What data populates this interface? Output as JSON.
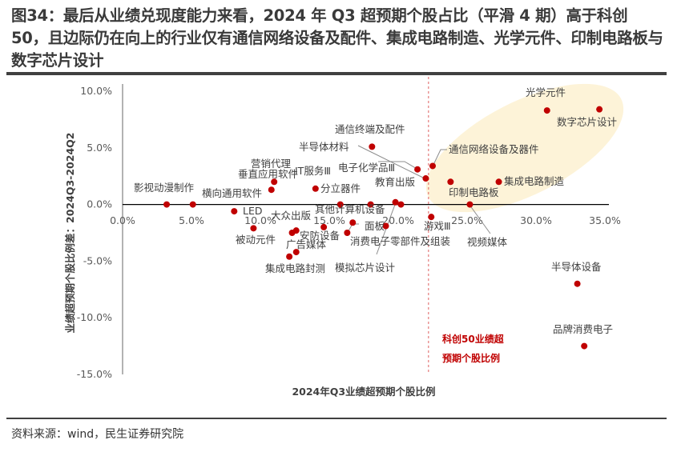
{
  "title": "图34：最后从业绩兑现度能力来看，2024 年 Q3 超预期个股占比（平滑 4 期）高于科创 50，且边际仍在向上的行业仅有通信网络设备及配件、集成电路制造、光学元件、印制电路板与数字芯片设计",
  "source": "资料来源：wind，民生证券研究院",
  "chart_data": {
    "type": "scatter",
    "xlabel": "2024年Q3业绩超预期个股比例",
    "ylabel": "业绩超预期个股比例差：2024Q3-2024Q2",
    "xlim": [
      0,
      35
    ],
    "ylim": [
      -15,
      10
    ],
    "xticks": [
      "0.0%",
      "5.0%",
      "10.0%",
      "15.0%",
      "20.0%",
      "25.0%",
      "30.0%",
      "35.0%"
    ],
    "yticks": [
      "10.0%",
      "5.0%",
      "0.0%",
      "-5.0%",
      "-10.0%",
      "-15.0%"
    ],
    "grid": false,
    "point_color": "#c00000",
    "highlight_color": "#fdf3d8",
    "reference_line": {
      "x": 22.2,
      "label_lines": [
        "科创50业绩超",
        "预期个股比例"
      ],
      "color": "#e06060"
    },
    "points": [
      {
        "x": 3.2,
        "y": 0
      },
      {
        "x": 5.1,
        "y": 0
      },
      {
        "x": 8.1,
        "y": -0.6
      },
      {
        "x": 9.5,
        "y": -2.1
      },
      {
        "x": 10.8,
        "y": 1.3
      },
      {
        "x": 11.0,
        "y": 2.0
      },
      {
        "x": 14.0,
        "y": 1.4
      },
      {
        "x": 15.8,
        "y": 0
      },
      {
        "x": 18.0,
        "y": 0
      },
      {
        "x": 18.1,
        "y": 5.1
      },
      {
        "x": 21.4,
        "y": 3.1
      },
      {
        "x": 22.0,
        "y": 2.3
      },
      {
        "x": 22.5,
        "y": 3.4
      },
      {
        "x": 19.8,
        "y": 0.2
      },
      {
        "x": 20.2,
        "y": 0
      },
      {
        "x": 16.7,
        "y": -1.6
      },
      {
        "x": 16.3,
        "y": -2.5
      },
      {
        "x": 14.6,
        "y": -2.0
      },
      {
        "x": 12.3,
        "y": -2.5
      },
      {
        "x": 12.6,
        "y": -2.3
      },
      {
        "x": 12.6,
        "y": -4.2
      },
      {
        "x": 12.1,
        "y": -4.6
      },
      {
        "x": 19.1,
        "y": -1.9
      },
      {
        "x": 22.4,
        "y": -1.1
      },
      {
        "x": 23.8,
        "y": 2.0
      },
      {
        "x": 27.3,
        "y": 2.0
      },
      {
        "x": 25.2,
        "y": 0
      },
      {
        "x": 30.8,
        "y": 8.3
      },
      {
        "x": 34.6,
        "y": 8.4
      },
      {
        "x": 33.0,
        "y": -7.0
      },
      {
        "x": 33.5,
        "y": -12.5
      }
    ],
    "annotations": [
      "影视动漫制作",
      "横向通用软件",
      "LED",
      "营销代理",
      "垂直应用软件",
      "IT服务Ⅲ",
      "分立器件",
      "通信终端及配件",
      "半导体材料",
      "电子化学品Ⅲ",
      "教育出版",
      "其他计算机设备",
      "大众出版",
      "被动元件",
      "安防设备",
      "广告媒体",
      "面板",
      "消费电子零部件及组装",
      "集成电路封测",
      "模拟芯片设计",
      "通信网络设备及器件",
      "印制电路板",
      "集成电路制造",
      "视频媒体",
      "游戏Ⅲ",
      "光学元件",
      "数字芯片设计",
      "半导体设备",
      "品牌消费电子"
    ]
  }
}
